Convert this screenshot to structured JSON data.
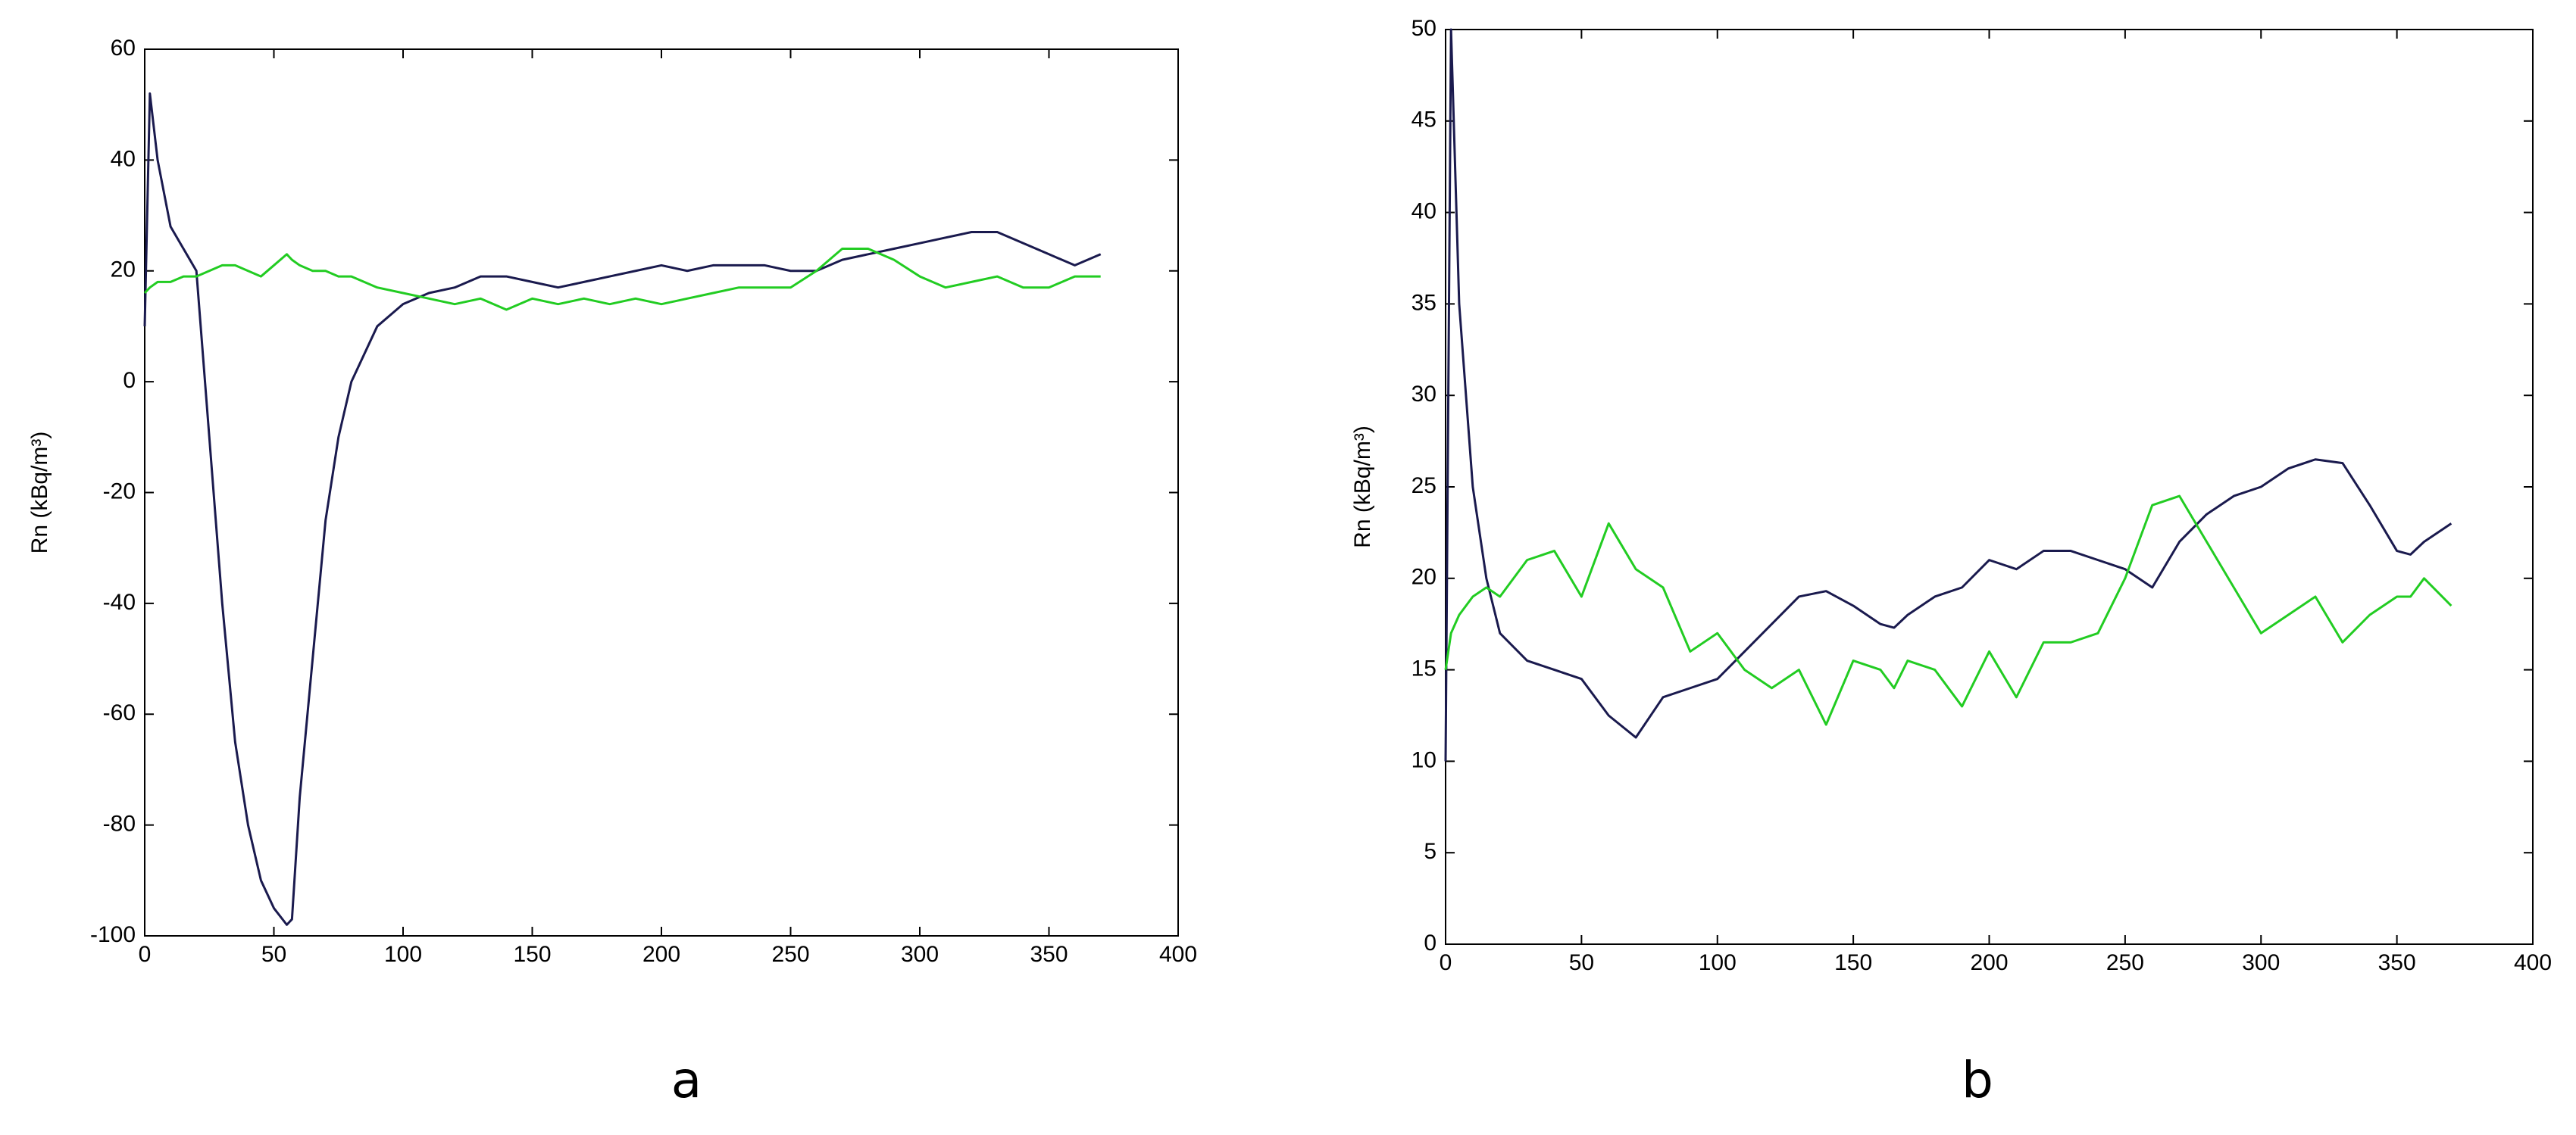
{
  "chart_data": [
    {
      "type": "line",
      "ylabel": "Rn (kBq/m³)",
      "caption": "a",
      "xlim": [
        0,
        400
      ],
      "xticks": [
        0,
        50,
        100,
        150,
        200,
        250,
        300,
        350,
        400
      ],
      "ylim": [
        -100,
        60
      ],
      "yticks": [
        -100,
        -80,
        -60,
        -40,
        -20,
        0,
        20,
        40,
        60
      ],
      "x": [
        0,
        2,
        5,
        10,
        15,
        20,
        25,
        30,
        35,
        40,
        45,
        50,
        55,
        57,
        60,
        65,
        70,
        75,
        80,
        90,
        100,
        110,
        120,
        130,
        140,
        150,
        160,
        170,
        180,
        190,
        200,
        210,
        220,
        230,
        240,
        250,
        260,
        270,
        280,
        290,
        300,
        310,
        320,
        330,
        340,
        350,
        360,
        370
      ],
      "series": [
        {
          "color": "#1a1a4e",
          "values": [
            10,
            52,
            40,
            28,
            24,
            20,
            -10,
            -40,
            -65,
            -80,
            -90,
            -95,
            -98,
            -97,
            -75,
            -50,
            -25,
            -10,
            0,
            10,
            14,
            16,
            17,
            19,
            19,
            18,
            17,
            18,
            19,
            20,
            21,
            20,
            21,
            21,
            21,
            20,
            20,
            22,
            23,
            24,
            25,
            26,
            27,
            27,
            25,
            23,
            21,
            23
          ]
        },
        {
          "color": "#22cc22",
          "values": [
            16,
            17,
            18,
            18,
            19,
            19,
            20,
            21,
            21,
            20,
            19,
            21,
            23,
            22,
            21,
            20,
            20,
            19,
            19,
            17,
            16,
            15,
            14,
            15,
            13,
            15,
            14,
            15,
            14,
            15,
            14,
            15,
            16,
            17,
            17,
            17,
            20,
            24,
            24,
            22,
            19,
            17,
            18,
            19,
            17,
            17,
            19,
            19
          ]
        }
      ]
    },
    {
      "type": "line",
      "ylabel": "Rn (kBq/m³)",
      "caption": "b",
      "xlim": [
        0,
        400
      ],
      "xticks": [
        0,
        50,
        100,
        150,
        200,
        250,
        300,
        350,
        400
      ],
      "ylim": [
        0,
        50
      ],
      "yticks": [
        0,
        5,
        10,
        15,
        20,
        25,
        30,
        35,
        40,
        45,
        50
      ],
      "x": [
        0,
        2,
        5,
        10,
        15,
        20,
        30,
        40,
        50,
        60,
        70,
        80,
        90,
        100,
        110,
        120,
        130,
        140,
        150,
        160,
        165,
        170,
        180,
        190,
        200,
        210,
        220,
        230,
        240,
        250,
        260,
        270,
        280,
        290,
        300,
        310,
        320,
        330,
        340,
        350,
        355,
        360,
        370
      ],
      "series": [
        {
          "color": "#1a1a4e",
          "values": [
            10,
            50,
            35,
            25,
            20,
            17,
            15.5,
            15,
            14.5,
            12.5,
            11.3,
            13.5,
            14,
            14.5,
            16,
            17.5,
            19,
            19.3,
            18.5,
            17.5,
            17.3,
            18,
            19,
            19.5,
            21,
            20.5,
            21.5,
            21.5,
            21,
            20.5,
            19.5,
            22,
            23.5,
            24.5,
            25,
            26,
            26.5,
            26.3,
            24,
            21.5,
            21.3,
            22,
            23
          ]
        },
        {
          "color": "#22cc22",
          "values": [
            15,
            17,
            18,
            19,
            19.5,
            19,
            21,
            21.5,
            19,
            23,
            20.5,
            19.5,
            16,
            17,
            15,
            14,
            15,
            12,
            15.5,
            15,
            14,
            15.5,
            15,
            13,
            16,
            13.5,
            16.5,
            16.5,
            17,
            20,
            24,
            24.5,
            22,
            19.5,
            17,
            18,
            19,
            16.5,
            18,
            19,
            19,
            20,
            18.5
          ]
        }
      ]
    }
  ]
}
